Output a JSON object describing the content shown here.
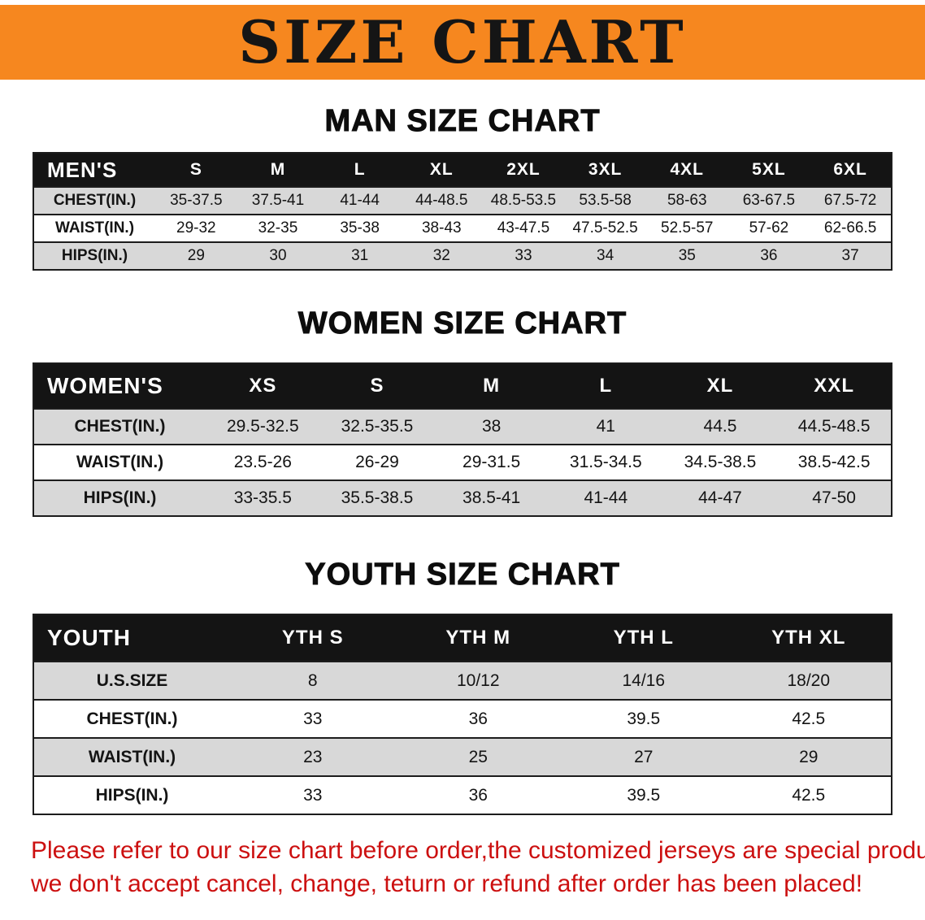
{
  "banner": {
    "title": "SIZE CHART"
  },
  "sections": [
    {
      "heading": "MAN SIZE CHART",
      "table": {
        "header": [
          "MEN'S",
          "S",
          "M",
          "L",
          "XL",
          "2XL",
          "3XL",
          "4XL",
          "5XL",
          "6XL"
        ],
        "rows": [
          [
            "CHEST(IN.)",
            "35-37.5",
            "37.5-41",
            "41-44",
            "44-48.5",
            "48.5-53.5",
            "53.5-58",
            "58-63",
            "63-67.5",
            "67.5-72"
          ],
          [
            "WAIST(IN.)",
            "29-32",
            "32-35",
            "35-38",
            "38-43",
            "43-47.5",
            "47.5-52.5",
            "52.5-57",
            "57-62",
            "62-66.5"
          ],
          [
            "HIPS(IN.)",
            "29",
            "30",
            "31",
            "32",
            "33",
            "34",
            "35",
            "36",
            "37"
          ]
        ]
      }
    },
    {
      "heading": "WOMEN SIZE CHART",
      "table": {
        "header": [
          "WOMEN'S",
          "XS",
          "S",
          "M",
          "L",
          "XL",
          "XXL"
        ],
        "rows": [
          [
            "CHEST(IN.)",
            "29.5-32.5",
            "32.5-35.5",
            "38",
            "41",
            "44.5",
            "44.5-48.5"
          ],
          [
            "WAIST(IN.)",
            "23.5-26",
            "26-29",
            "29-31.5",
            "31.5-34.5",
            "34.5-38.5",
            "38.5-42.5"
          ],
          [
            "HIPS(IN.)",
            "33-35.5",
            "35.5-38.5",
            "38.5-41",
            "41-44",
            "44-47",
            "47-50"
          ]
        ]
      }
    },
    {
      "heading": "YOUTH SIZE CHART",
      "table": {
        "header": [
          "YOUTH",
          "YTH S",
          "YTH M",
          "YTH L",
          "YTH XL"
        ],
        "rows": [
          [
            "U.S.SIZE",
            "8",
            "10/12",
            "14/16",
            "18/20"
          ],
          [
            "CHEST(IN.)",
            "33",
            "36",
            "39.5",
            "42.5"
          ],
          [
            "WAIST(IN.)",
            "23",
            "25",
            "27",
            "29"
          ],
          [
            "HIPS(IN.)",
            "33",
            "36",
            "39.5",
            "42.5"
          ]
        ]
      }
    }
  ],
  "disclaimer": {
    "line1": "Please refer to our size chart before order,the customized jerseys are special products,",
    "line2": "we don't accept cancel, change, teturn or refund after order has been placed!"
  },
  "colors": {
    "banner_bg": "#f6871f",
    "header_bg": "#141414",
    "row_alt": "#d8d8d8",
    "accent_red": "#cc1010"
  }
}
